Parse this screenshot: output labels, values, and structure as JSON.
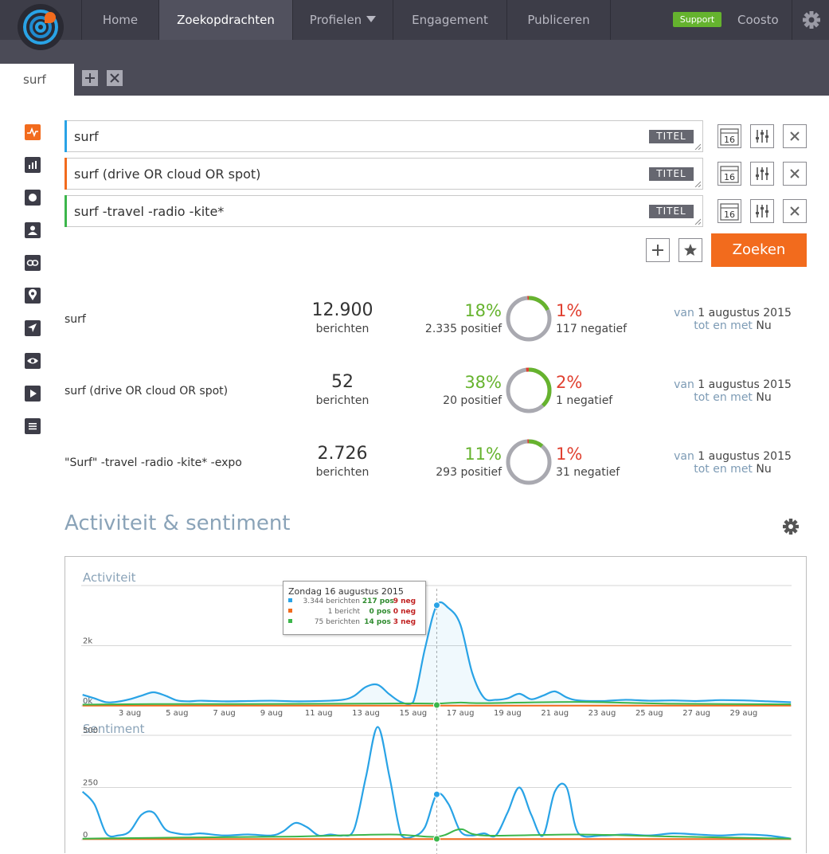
{
  "nav": {
    "items": [
      "Home",
      "Zoekopdrachten",
      "Profielen",
      "Engagement",
      "Publiceren"
    ],
    "active": "Zoekopdrachten",
    "support": "Support",
    "user": "Coosto"
  },
  "tabs": {
    "current": "surf"
  },
  "queries": [
    {
      "text": "surf",
      "badge": "TITEL",
      "color": "#29a3e6",
      "date_icon": "16"
    },
    {
      "text": "surf (drive OR cloud OR spot)",
      "badge": "TITEL",
      "color": "#f26b1d",
      "date_icon": "16"
    },
    {
      "text": "surf -travel -radio -kite*",
      "badge": "TITEL",
      "color": "#3cb64b",
      "date_icon": "16"
    }
  ],
  "search_button": "Zoeken",
  "results": [
    {
      "name": "surf",
      "count": "12.900",
      "count_label": "berichten",
      "pos_pct": "18%",
      "pos_count": "2.335 positief",
      "neg_pct": "1%",
      "neg_count": "117 negatief",
      "pos_frac": 0.18,
      "neg_frac": 0.01,
      "from_label": "van",
      "from": "1 augustus 2015",
      "to_label": "tot en met",
      "to": "Nu"
    },
    {
      "name": "surf (drive OR cloud OR spot)",
      "count": "52",
      "count_label": "berichten",
      "pos_pct": "38%",
      "pos_count": "20 positief",
      "neg_pct": "2%",
      "neg_count": "1 negatief",
      "pos_frac": 0.38,
      "neg_frac": 0.02,
      "from_label": "van",
      "from": "1 augustus 2015",
      "to_label": "tot en met",
      "to": "Nu"
    },
    {
      "name": "\"Surf\" -travel -radio -kite* -expo",
      "count": "2.726",
      "count_label": "berichten",
      "pos_pct": "11%",
      "pos_count": "293 positief",
      "neg_pct": "1%",
      "neg_count": "31 negatief",
      "pos_frac": 0.11,
      "neg_frac": 0.01,
      "from_label": "van",
      "from": "1 augustus 2015",
      "to_label": "tot en met",
      "to": "Nu"
    }
  ],
  "section_title": "Activiteit & sentiment",
  "tooltip": {
    "title": "Zondag 16 augustus 2015",
    "rows": [
      {
        "color": "#29a3e6",
        "berichten": "3.344 berichten",
        "pos": "217 pos",
        "neg": "9 neg"
      },
      {
        "color": "#f26b1d",
        "berichten": "1 bericht",
        "pos": "0 pos",
        "neg": "0 neg"
      },
      {
        "color": "#3cb64b",
        "berichten": "75 berichten",
        "pos": "14 pos",
        "neg": "3 neg"
      }
    ]
  },
  "chart_data": [
    {
      "type": "area",
      "title": "Activiteit",
      "ytick_labels": [
        "0k",
        "2k"
      ],
      "yticks": [
        0,
        2000
      ],
      "ylim": [
        0,
        4000
      ],
      "xtick_labels": [
        "3 aug",
        "5 aug",
        "7 aug",
        "9 aug",
        "11 aug",
        "13 aug",
        "15 aug",
        "17 aug",
        "19 aug",
        "21 aug",
        "23 aug",
        "25 aug",
        "27 aug",
        "29 aug"
      ],
      "xtick_days": [
        3,
        5,
        7,
        9,
        11,
        13,
        15,
        17,
        19,
        21,
        23,
        25,
        27,
        29
      ],
      "highlight_day": 16,
      "series": [
        {
          "color": "#29a3e6",
          "days": [
            1,
            1.5,
            2,
            2.5,
            3,
            3.5,
            4,
            4.5,
            5,
            5.5,
            6,
            7,
            8,
            9,
            10,
            11,
            12,
            12.5,
            13,
            13.5,
            14,
            14.5,
            15,
            15.5,
            16,
            16.5,
            17,
            17.5,
            18,
            18.5,
            19,
            19.5,
            20,
            20.5,
            21,
            21.5,
            22,
            23,
            24,
            25,
            26,
            27,
            28,
            29,
            30,
            31
          ],
          "values": [
            370,
            250,
            120,
            140,
            220,
            340,
            450,
            340,
            180,
            150,
            170,
            150,
            160,
            170,
            150,
            160,
            200,
            330,
            630,
            700,
            380,
            120,
            120,
            1900,
            3344,
            3250,
            2700,
            1100,
            270,
            200,
            250,
            400,
            220,
            340,
            480,
            280,
            180,
            160,
            200,
            170,
            180,
            160,
            190,
            180,
            150,
            120
          ]
        },
        {
          "color": "#f26b1d",
          "days": [
            1,
            31
          ],
          "values": [
            8,
            8
          ]
        },
        {
          "color": "#3cb64b",
          "days": [
            1,
            4,
            8,
            12,
            15,
            16,
            17,
            18,
            22,
            26,
            31
          ],
          "values": [
            40,
            60,
            60,
            70,
            80,
            75,
            110,
            90,
            130,
            70,
            50
          ]
        }
      ]
    },
    {
      "type": "line",
      "title": "Sentiment",
      "ytick_labels": [
        "0",
        "250",
        "500"
      ],
      "yticks": [
        0,
        250,
        500
      ],
      "ylim": [
        0,
        500
      ],
      "highlight_day": 16,
      "series": [
        {
          "color": "#29a3e6",
          "days": [
            1,
            1.5,
            2,
            2.5,
            3,
            3.5,
            4,
            4.5,
            5,
            5.5,
            6,
            7,
            8,
            9,
            9.5,
            10,
            10.5,
            11,
            11.5,
            12,
            12.5,
            13,
            13.5,
            14,
            14.5,
            15,
            15.5,
            16,
            16.5,
            17,
            17.5,
            18,
            18.5,
            19,
            19.5,
            20,
            20.5,
            21,
            21.5,
            22,
            23,
            24,
            25,
            26,
            27,
            28,
            29,
            30,
            31
          ],
          "values": [
            230,
            170,
            30,
            20,
            40,
            120,
            130,
            50,
            30,
            25,
            30,
            20,
            25,
            20,
            40,
            80,
            60,
            20,
            25,
            20,
            50,
            300,
            540,
            300,
            20,
            15,
            60,
            217,
            170,
            40,
            20,
            30,
            20,
            130,
            250,
            120,
            20,
            230,
            250,
            30,
            20,
            25,
            20,
            30,
            25,
            20,
            25,
            20,
            5
          ]
        },
        {
          "color": "#f26b1d",
          "days": [
            1,
            31
          ],
          "values": [
            3,
            3
          ]
        },
        {
          "color": "#3cb64b",
          "days": [
            1,
            5,
            10,
            14,
            16,
            17,
            18,
            22,
            26,
            31
          ],
          "values": [
            5,
            10,
            15,
            25,
            14,
            50,
            20,
            25,
            15,
            5
          ]
        }
      ]
    }
  ]
}
